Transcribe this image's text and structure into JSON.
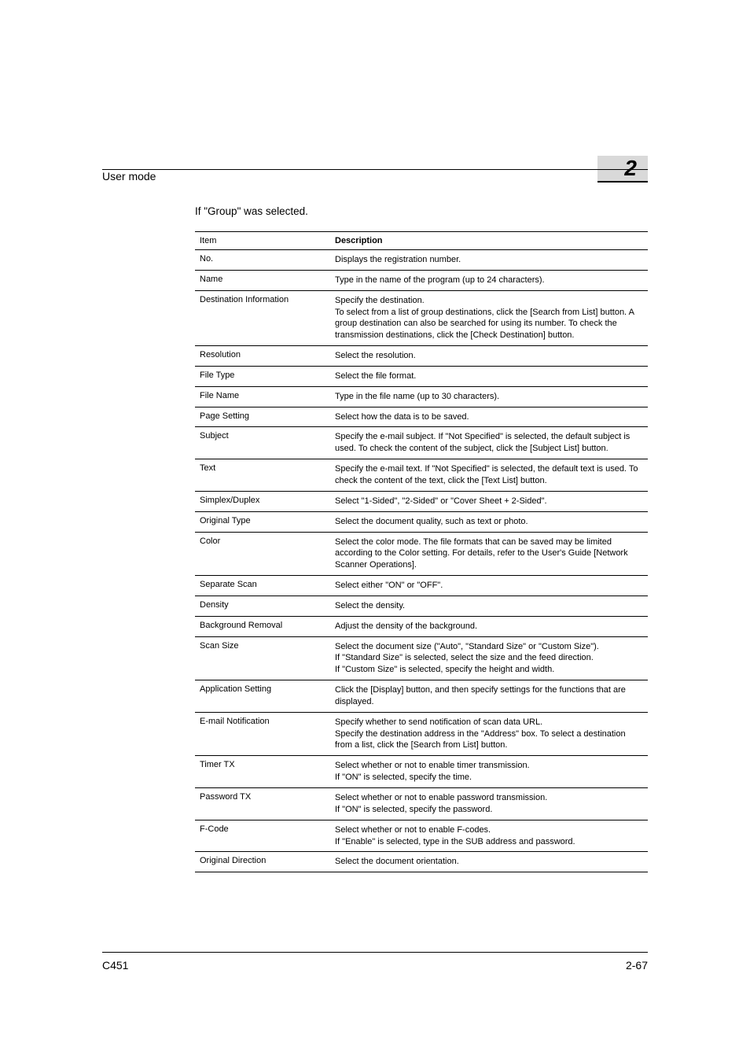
{
  "header": {
    "section": "User mode",
    "chapter_number": "2"
  },
  "intro_text": "If \"Group\" was selected.",
  "table": {
    "head": {
      "item": "Item",
      "description": "Description"
    },
    "rows": [
      {
        "item": "No.",
        "desc": "Displays the registration number."
      },
      {
        "item": "Name",
        "desc": "Type in the name of the program (up to 24 characters)."
      },
      {
        "item": "Destination Information",
        "desc": "Specify the destination.\nTo select from a list of group destinations, click the [Search from List] button. A group destination can also be searched for using its number. To check the transmission destinations, click the [Check Destination] button."
      },
      {
        "item": "Resolution",
        "desc": "Select the resolution."
      },
      {
        "item": "File Type",
        "desc": "Select the file format."
      },
      {
        "item": "File Name",
        "desc": "Type in the file name (up to 30 characters)."
      },
      {
        "item": "Page Setting",
        "desc": "Select how the data is to be saved."
      },
      {
        "item": "Subject",
        "desc": "Specify the e-mail subject. If \"Not Specified\" is selected, the default subject is used. To check the content of the subject, click the [Subject List] button."
      },
      {
        "item": "Text",
        "desc": "Specify the e-mail text. If \"Not Specified\" is selected, the default text is used. To check the content of the text, click the [Text List] button."
      },
      {
        "item": "Simplex/Duplex",
        "desc": "Select \"1-Sided\", \"2-Sided\" or \"Cover Sheet + 2-Sided\"."
      },
      {
        "item": "Original Type",
        "desc": "Select the document quality, such as text or photo."
      },
      {
        "item": "Color",
        "desc": "Select the color mode. The file formats that can be saved may be limited according to the Color setting. For details, refer to the User's Guide [Network Scanner Operations]."
      },
      {
        "item": "Separate Scan",
        "desc": "Select either \"ON\" or \"OFF\"."
      },
      {
        "item": "Density",
        "desc": "Select the density."
      },
      {
        "item": "Background Removal",
        "desc": "Adjust the density of the background."
      },
      {
        "item": "Scan Size",
        "desc": "Select the document size (\"Auto\", \"Standard Size\" or \"Custom Size\").\nIf \"Standard Size\" is selected, select the size and the feed direction.\nIf \"Custom Size\" is selected, specify the height and width."
      },
      {
        "item": "Application Setting",
        "desc": "Click the [Display] button, and then specify settings for the functions that are displayed."
      },
      {
        "item": "E-mail Notification",
        "desc": "Specify whether to send notification of scan data URL.\nSpecify the destination address in the \"Address\" box. To select a destination from a list, click the [Search from List] button."
      },
      {
        "item": "Timer TX",
        "desc": "Select whether or not to enable timer transmission.\nIf \"ON\" is selected, specify the time."
      },
      {
        "item": "Password TX",
        "desc": "Select whether or not to enable password transmission.\nIf \"ON\" is selected, specify the password."
      },
      {
        "item": "F-Code",
        "desc": "Select whether or not to enable F-codes.\nIf \"Enable\" is selected, type in the SUB address and password."
      },
      {
        "item": "Original Direction",
        "desc": "Select the document orientation."
      }
    ]
  },
  "footer": {
    "model": "C451",
    "page": "2-67"
  }
}
